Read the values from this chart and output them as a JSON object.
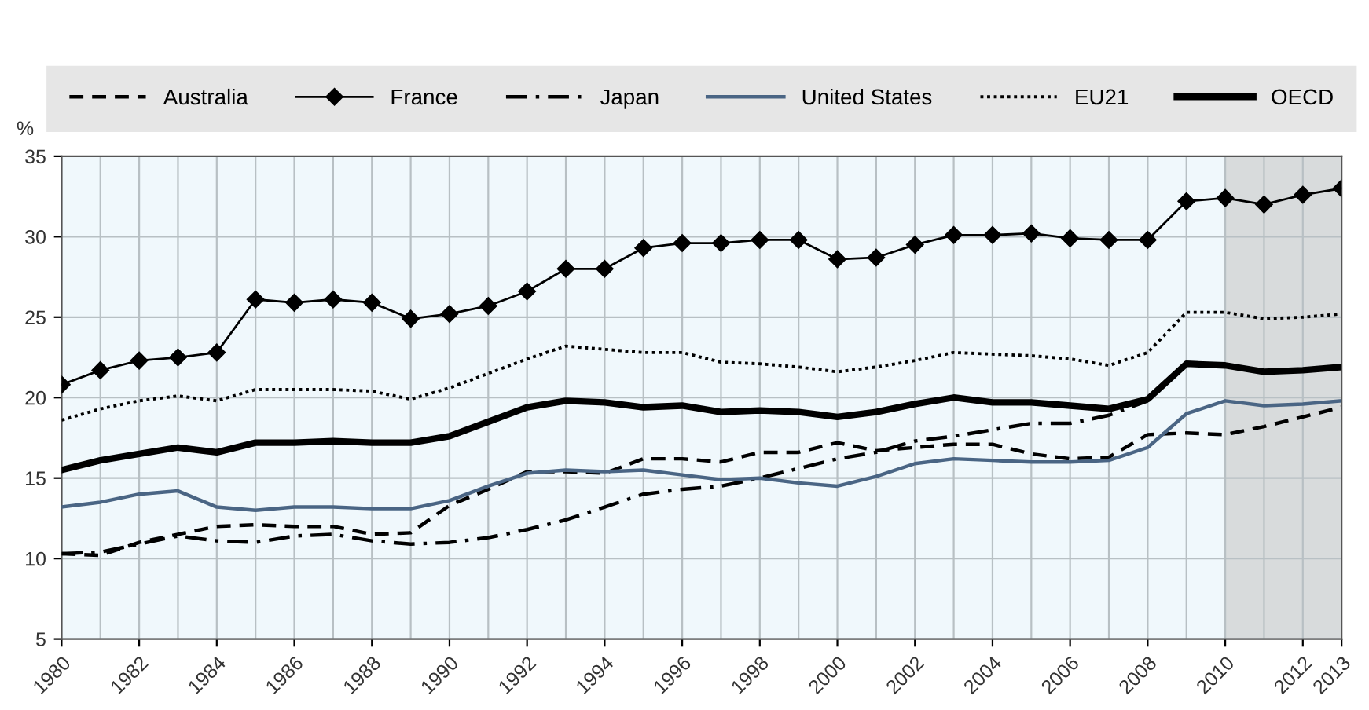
{
  "chart_data": {
    "type": "line",
    "ylabel": "%",
    "x": [
      1980,
      1981,
      1982,
      1983,
      1984,
      1985,
      1986,
      1987,
      1988,
      1989,
      1990,
      1991,
      1992,
      1993,
      1994,
      1995,
      1996,
      1997,
      1998,
      1999,
      2000,
      2001,
      2002,
      2003,
      2004,
      2005,
      2006,
      2007,
      2008,
      2009,
      2010,
      2011,
      2012,
      2013
    ],
    "series": [
      {
        "name": "Australia",
        "color": "#000000",
        "line_style": "dashed",
        "marker": "none",
        "values": [
          10.3,
          10.2,
          11.0,
          11.5,
          12.0,
          12.1,
          12.0,
          12.0,
          11.5,
          11.6,
          13.3,
          14.3,
          15.4,
          15.4,
          15.3,
          16.2,
          16.2,
          16.0,
          16.6,
          16.6,
          17.2,
          16.7,
          16.9,
          17.1,
          17.1,
          16.5,
          16.2,
          16.3,
          17.7,
          17.8,
          17.7,
          18.2,
          18.8,
          19.4
        ]
      },
      {
        "name": "France",
        "color": "#000000",
        "line_style": "solid",
        "marker": "diamond",
        "values": [
          20.8,
          21.7,
          22.3,
          22.5,
          22.8,
          26.1,
          25.9,
          26.1,
          25.9,
          24.9,
          25.2,
          25.7,
          26.6,
          28.0,
          28.0,
          29.3,
          29.6,
          29.6,
          29.8,
          29.8,
          28.6,
          28.7,
          29.5,
          30.1,
          30.1,
          30.2,
          29.9,
          29.8,
          29.8,
          32.2,
          32.4,
          32.0,
          32.6,
          33.0
        ]
      },
      {
        "name": "Japan",
        "color": "#000000",
        "line_style": "dashdot",
        "marker": "none",
        "values": [
          10.3,
          10.4,
          10.9,
          11.4,
          11.1,
          11.0,
          11.4,
          11.5,
          11.1,
          10.9,
          11.0,
          11.3,
          11.8,
          12.4,
          13.2,
          14.0,
          14.3,
          14.5,
          15.0,
          15.6,
          16.2,
          16.6,
          17.3,
          17.6,
          18.0,
          18.4,
          18.4,
          18.9,
          19.8,
          null,
          null,
          null,
          null,
          null
        ]
      },
      {
        "name": "United States",
        "color": "#4a6584",
        "line_style": "solid",
        "marker": "none",
        "values": [
          13.2,
          13.5,
          14.0,
          14.2,
          13.2,
          13.0,
          13.2,
          13.2,
          13.1,
          13.1,
          13.6,
          14.5,
          15.3,
          15.5,
          15.4,
          15.5,
          15.2,
          14.9,
          15.0,
          14.7,
          14.5,
          15.1,
          15.9,
          16.2,
          16.1,
          16.0,
          16.0,
          16.1,
          16.9,
          19.0,
          19.8,
          19.5,
          19.6,
          19.8
        ]
      },
      {
        "name": "EU21",
        "color": "#000000",
        "line_style": "dotted",
        "marker": "none",
        "values": [
          18.6,
          19.3,
          19.8,
          20.1,
          19.8,
          20.5,
          20.5,
          20.5,
          20.4,
          19.9,
          20.6,
          21.5,
          22.4,
          23.2,
          23.0,
          22.8,
          22.8,
          22.2,
          22.1,
          21.9,
          21.6,
          21.9,
          22.3,
          22.8,
          22.7,
          22.6,
          22.4,
          22.0,
          22.8,
          25.3,
          25.3,
          24.9,
          25.0,
          25.2
        ]
      },
      {
        "name": "OECD",
        "color": "#000000",
        "line_style": "solid",
        "marker": "none",
        "values": [
          15.5,
          16.1,
          16.5,
          16.9,
          16.6,
          17.2,
          17.2,
          17.3,
          17.2,
          17.2,
          17.6,
          18.5,
          19.4,
          19.8,
          19.7,
          19.4,
          19.5,
          19.1,
          19.2,
          19.1,
          18.8,
          19.1,
          19.6,
          20.0,
          19.7,
          19.7,
          19.5,
          19.3,
          19.9,
          22.1,
          22.0,
          21.6,
          21.7,
          21.9
        ]
      }
    ],
    "xlim": [
      1980,
      2013
    ],
    "xticks": [
      1980,
      1982,
      1984,
      1986,
      1988,
      1990,
      1992,
      1994,
      1996,
      1998,
      2000,
      2002,
      2004,
      2006,
      2008,
      2010,
      2012,
      2013
    ],
    "ylim": [
      5,
      35
    ],
    "yticks": [
      5,
      10,
      15,
      20,
      25,
      30,
      35
    ],
    "bands": [
      {
        "axis": "x",
        "from": 2010,
        "to": 2013,
        "color": "#d8dbdc"
      }
    ],
    "grid": true,
    "legend": "top"
  }
}
